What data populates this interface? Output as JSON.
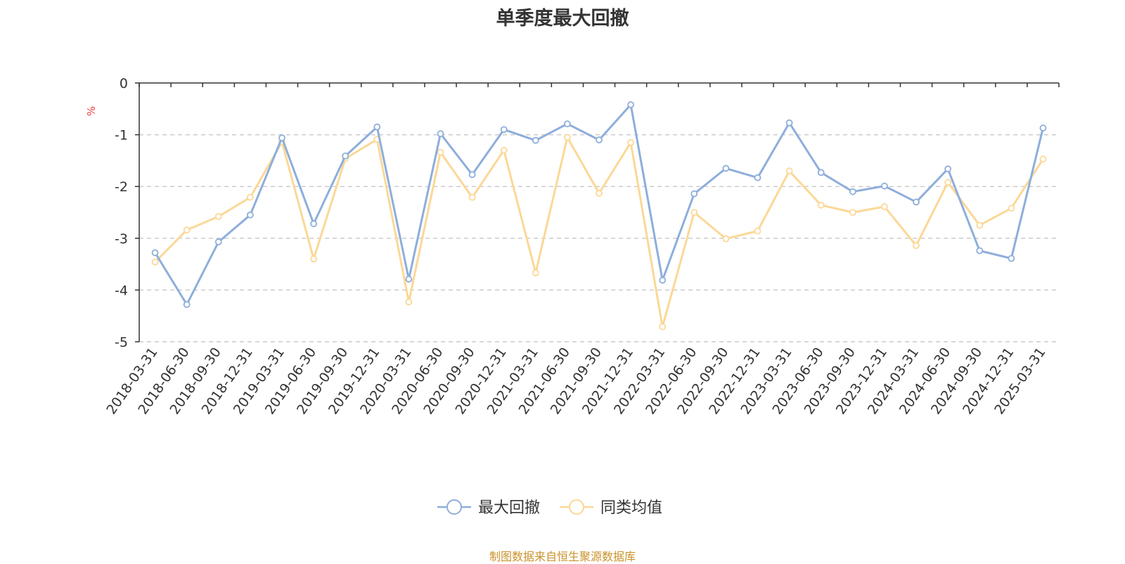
{
  "chart_data": {
    "type": "line",
    "title": "单季度最大回撤",
    "ylabel": "%",
    "ylim": [
      -5,
      0
    ],
    "yticks": [
      0,
      -1,
      -2,
      -3,
      -4,
      -5
    ],
    "grid": "horizontal-dashed",
    "legend_placement": "bottom-center",
    "categories": [
      "2018-03-31",
      "2018-06-30",
      "2018-09-30",
      "2018-12-31",
      "2019-03-31",
      "2019-06-30",
      "2019-09-30",
      "2019-12-31",
      "2020-03-31",
      "2020-06-30",
      "2020-09-30",
      "2020-12-31",
      "2021-03-31",
      "2021-06-30",
      "2021-09-30",
      "2021-12-31",
      "2022-03-31",
      "2022-06-30",
      "2022-09-30",
      "2022-12-31",
      "2023-03-31",
      "2023-06-30",
      "2023-09-30",
      "2023-12-31",
      "2024-03-31",
      "2024-06-30",
      "2024-09-30",
      "2024-12-31",
      "2025-03-31"
    ],
    "series": [
      {
        "name": "最大回撤",
        "color": "#8eaedb",
        "values": [
          -3.28,
          -4.28,
          -3.07,
          -2.55,
          -1.06,
          -2.72,
          -1.41,
          -0.85,
          -3.79,
          -0.98,
          -1.77,
          -0.9,
          -1.11,
          -0.79,
          -1.1,
          -0.42,
          -3.81,
          -2.14,
          -1.65,
          -1.83,
          -0.77,
          -1.73,
          -2.1,
          -1.99,
          -2.3,
          -1.66,
          -3.24,
          -3.39,
          -0.87
        ]
      },
      {
        "name": "同类均值",
        "color": "#fbd897",
        "values": [
          -3.46,
          -2.84,
          -2.58,
          -2.21,
          -1.14,
          -3.4,
          -1.46,
          -1.09,
          -4.23,
          -1.34,
          -2.21,
          -1.3,
          -3.67,
          -1.05,
          -2.13,
          -1.15,
          -4.71,
          -2.5,
          -3.01,
          -2.86,
          -1.7,
          -2.36,
          -2.5,
          -2.39,
          -3.14,
          -1.92,
          -2.75,
          -2.42,
          -1.47
        ]
      }
    ]
  },
  "footer": {
    "source": "制图数据来自恒生聚源数据库"
  },
  "colors": {
    "axis": "#333333",
    "grid": "#cccccc",
    "unit": "#e8403a",
    "source_text": "#c9922a"
  }
}
